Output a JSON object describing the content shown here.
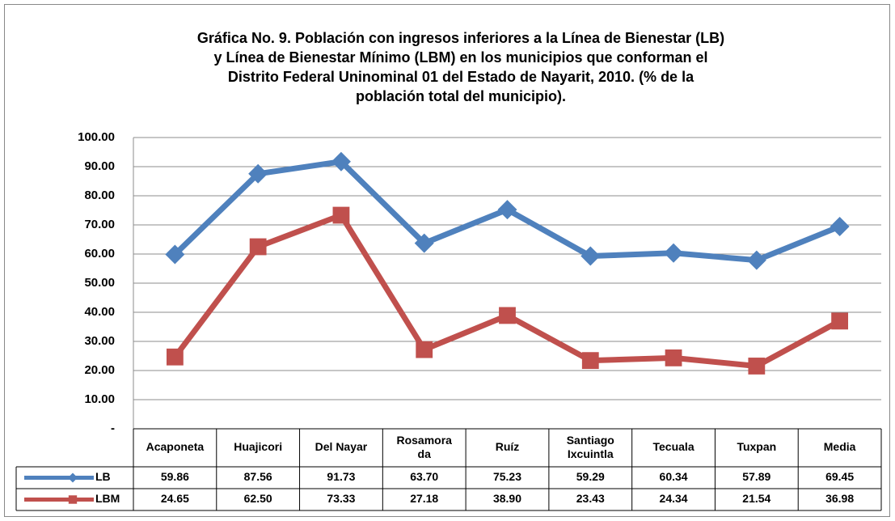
{
  "chart_data": {
    "type": "line",
    "title": [
      "Gráfica No. 9. Población con ingresos inferiores a la Línea de Bienestar (LB)",
      "y Línea de Bienestar Mínimo (LBM) en los municipios que conforman el",
      "Distrito Federal Uninominal 01 del Estado de Nayarit, 2010. (% de la",
      "población total del municipio)."
    ],
    "categories": [
      "Acaponeta",
      "Huajicori",
      "Del Nayar",
      "Rosamora\nda",
      "Ruíz",
      "Santiago\nIxcuintla",
      "Tecuala",
      "Tuxpan",
      "Media"
    ],
    "series": [
      {
        "name": "LB",
        "color": "#4f81bd",
        "marker": "diamond",
        "values": [
          59.86,
          87.56,
          91.73,
          63.7,
          75.23,
          59.29,
          60.34,
          57.89,
          69.45
        ],
        "value_labels": [
          "59.86",
          "87.56",
          "91.73",
          "63.70",
          "75.23",
          "59.29",
          "60.34",
          "57.89",
          "69.45"
        ]
      },
      {
        "name": "LBM",
        "color": "#c0504d",
        "marker": "square",
        "values": [
          24.65,
          62.5,
          73.33,
          27.18,
          38.9,
          23.43,
          24.34,
          21.54,
          36.98
        ],
        "value_labels": [
          "24.65",
          "62.50",
          "73.33",
          "27.18",
          "38.90",
          "23.43",
          "24.34",
          "21.54",
          "36.98"
        ]
      }
    ],
    "ylim": [
      0,
      100
    ],
    "yticks": [
      {
        "value": 0,
        "label": "-"
      },
      {
        "value": 10,
        "label": "10.00"
      },
      {
        "value": 20,
        "label": "20.00"
      },
      {
        "value": 30,
        "label": "30.00"
      },
      {
        "value": 40,
        "label": "40.00"
      },
      {
        "value": 50,
        "label": "50.00"
      },
      {
        "value": 60,
        "label": "60.00"
      },
      {
        "value": 70,
        "label": "70.00"
      },
      {
        "value": 80,
        "label": "80.00"
      },
      {
        "value": 90,
        "label": "90.00"
      },
      {
        "value": 100,
        "label": "100.00"
      }
    ],
    "grid": true
  }
}
